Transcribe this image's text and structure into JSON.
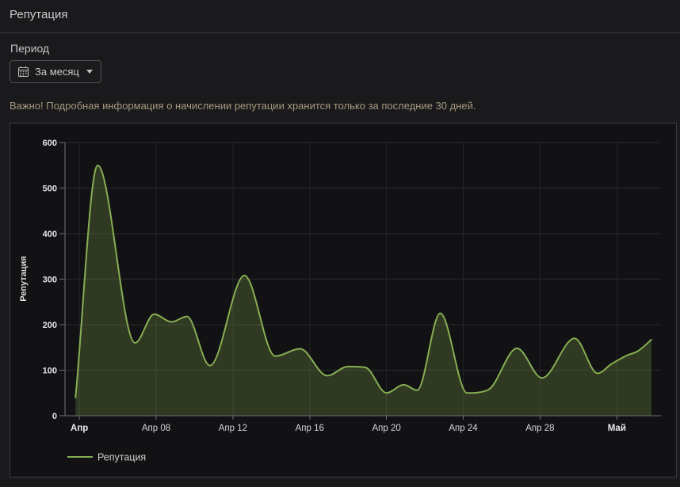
{
  "header": {
    "title": "Репутация"
  },
  "period": {
    "label": "Период",
    "selected": "За месяц",
    "calendar_icon": "calendar-icon",
    "caret_icon": "caret-down-icon"
  },
  "notice": "Важно! Подробная информация о начислении репутации хранится только за последние 30 дней.",
  "colors": {
    "page_bg": "#1a1a1c",
    "panel_bg": "#121214",
    "panel_border": "#3d3d3f",
    "grid_h": "#2a2a2c",
    "grid_v": "#242426",
    "axis_line": "#707073",
    "series_line": "#86ae53",
    "area_fill": "rgba(134,174,83,0.26)",
    "notice_text": "#a6987f"
  },
  "chart_data": {
    "type": "area",
    "title": "",
    "xlabel": "",
    "ylabel": "Репутация",
    "ylim": [
      0,
      600
    ],
    "y_ticks": [
      0,
      100,
      200,
      300,
      400,
      500,
      600
    ],
    "x_unit": "days, 0 = tick «Апр» (Apr 04); range is one month ending at «Май»",
    "x_range_days": [
      -0.75,
      30.3
    ],
    "x_ticks": [
      {
        "day": 0,
        "label": "Апр",
        "bold": true
      },
      {
        "day": 4,
        "label": "Апр 08",
        "bold": false
      },
      {
        "day": 8,
        "label": "Апр 12",
        "bold": false
      },
      {
        "day": 12,
        "label": "Апр 16",
        "bold": false
      },
      {
        "day": 16,
        "label": "Апр 20",
        "bold": false
      },
      {
        "day": 20,
        "label": "Апр 24",
        "bold": false
      },
      {
        "day": 24,
        "label": "Апр 28",
        "bold": false
      },
      {
        "day": 28,
        "label": "Май",
        "bold": true
      }
    ],
    "grid": true,
    "legend_position": "bottom-left",
    "series": [
      {
        "name": "Репутация",
        "points": [
          [
            -0.2,
            40
          ],
          [
            0.95,
            550
          ],
          [
            2.9,
            160
          ],
          [
            3.9,
            223
          ],
          [
            4.8,
            206
          ],
          [
            5.6,
            218
          ],
          [
            6.8,
            110
          ],
          [
            8.6,
            308
          ],
          [
            10.2,
            131
          ],
          [
            11.5,
            147
          ],
          [
            12.9,
            88
          ],
          [
            14,
            108
          ],
          [
            14.9,
            106
          ],
          [
            16,
            50
          ],
          [
            16.9,
            68
          ],
          [
            17.6,
            56
          ],
          [
            18.8,
            225
          ],
          [
            20.2,
            50
          ],
          [
            21.3,
            57
          ],
          [
            22.8,
            148
          ],
          [
            24.1,
            83
          ],
          [
            25.8,
            170
          ],
          [
            27,
            93
          ],
          [
            27.7,
            113
          ],
          [
            28.5,
            132
          ],
          [
            29.1,
            142
          ],
          [
            29.8,
            167
          ]
        ]
      }
    ]
  }
}
